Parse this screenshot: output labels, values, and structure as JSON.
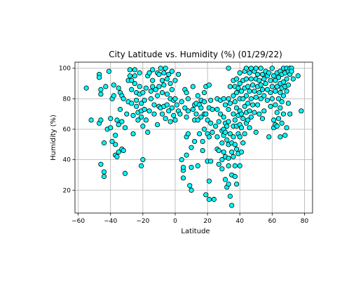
{
  "chart_data": {
    "type": "scatter",
    "title": "City Latitude vs. Humidity (%) (01/29/22)",
    "xlabel": "Latitude",
    "ylabel": "Humidity (%)",
    "xlim": [
      -62,
      85
    ],
    "ylim": [
      5,
      104
    ],
    "xticks": [
      -60,
      -40,
      -20,
      0,
      20,
      40,
      60,
      80
    ],
    "yticks": [
      20,
      40,
      60,
      80,
      100
    ],
    "grid": true,
    "marker_fill": "#00ffff",
    "marker_edge": "#000000",
    "points": [
      [
        -55,
        87
      ],
      [
        -52,
        66
      ],
      [
        -47,
        96
      ],
      [
        -47,
        94
      ],
      [
        -46,
        86
      ],
      [
        -46,
        83
      ],
      [
        -47,
        64
      ],
      [
        -46,
        66
      ],
      [
        -46,
        37
      ],
      [
        -44,
        32
      ],
      [
        -44,
        29
      ],
      [
        -44,
        51
      ],
      [
        -43,
        88
      ],
      [
        -42,
        60
      ],
      [
        -41,
        98
      ],
      [
        -40,
        61
      ],
      [
        -40,
        67
      ],
      [
        -39,
        52
      ],
      [
        -39,
        80
      ],
      [
        -38,
        89
      ],
      [
        -38,
        82
      ],
      [
        -37,
        56
      ],
      [
        -37,
        50
      ],
      [
        -37,
        43
      ],
      [
        -36,
        42
      ],
      [
        -36,
        66
      ],
      [
        -35,
        63
      ],
      [
        -35,
        45
      ],
      [
        -35,
        87
      ],
      [
        -34,
        84
      ],
      [
        -34,
        73
      ],
      [
        -33,
        47
      ],
      [
        -33,
        65
      ],
      [
        -33,
        82
      ],
      [
        -32,
        80
      ],
      [
        -32,
        46
      ],
      [
        -31,
        31
      ],
      [
        -31,
        61
      ],
      [
        -30,
        70
      ],
      [
        -29,
        92
      ],
      [
        -29,
        78
      ],
      [
        -28,
        99
      ],
      [
        -28,
        95
      ],
      [
        -27,
        92
      ],
      [
        -27,
        86
      ],
      [
        -27,
        77
      ],
      [
        -26,
        69
      ],
      [
        -26,
        57
      ],
      [
        -25,
        99
      ],
      [
        -25,
        95
      ],
      [
        -25,
        90
      ],
      [
        -24,
        84
      ],
      [
        -24,
        79
      ],
      [
        -24,
        75
      ],
      [
        -23,
        66
      ],
      [
        -23,
        71
      ],
      [
        -22,
        97
      ],
      [
        -22,
        88
      ],
      [
        -22,
        83
      ],
      [
        -21,
        77
      ],
      [
        -21,
        72
      ],
      [
        -21,
        68
      ],
      [
        -21,
        36
      ],
      [
        -20,
        40
      ],
      [
        -20,
        62
      ],
      [
        -20,
        84
      ],
      [
        -19,
        79
      ],
      [
        -19,
        73
      ],
      [
        -18,
        87
      ],
      [
        -18,
        66
      ],
      [
        -17,
        58
      ],
      [
        -17,
        95
      ],
      [
        -16,
        97
      ],
      [
        -16,
        72
      ],
      [
        -15,
        85
      ],
      [
        -15,
        80
      ],
      [
        -14,
        99
      ],
      [
        -14,
        92
      ],
      [
        -14,
        88
      ],
      [
        -13,
        76
      ],
      [
        -13,
        70
      ],
      [
        -12,
        86
      ],
      [
        -11,
        82
      ],
      [
        -11,
        97
      ],
      [
        -11,
        63
      ],
      [
        -10,
        96
      ],
      [
        -10,
        88
      ],
      [
        -10,
        75
      ],
      [
        -9,
        100
      ],
      [
        -9,
        74
      ],
      [
        -8,
        92
      ],
      [
        -8,
        84
      ],
      [
        -8,
        70
      ],
      [
        -7,
        97
      ],
      [
        -7,
        89
      ],
      [
        -7,
        75
      ],
      [
        -6,
        100
      ],
      [
        -6,
        67
      ],
      [
        -5,
        93
      ],
      [
        -5,
        83
      ],
      [
        -5,
        76
      ],
      [
        -4,
        96
      ],
      [
        -4,
        72
      ],
      [
        -3,
        90
      ],
      [
        -3,
        80
      ],
      [
        -3,
        65
      ],
      [
        -2,
        98
      ],
      [
        -2,
        86
      ],
      [
        -2,
        74
      ],
      [
        -1,
        79
      ],
      [
        -1,
        69
      ],
      [
        0,
        92
      ],
      [
        0,
        80
      ],
      [
        0,
        66
      ],
      [
        1,
        76
      ],
      [
        2,
        96
      ],
      [
        2,
        72
      ],
      [
        3,
        70
      ],
      [
        4,
        78
      ],
      [
        4,
        40
      ],
      [
        5,
        33
      ],
      [
        5,
        28
      ],
      [
        5,
        35
      ],
      [
        6,
        86
      ],
      [
        6,
        74
      ],
      [
        7,
        84
      ],
      [
        7,
        68
      ],
      [
        7,
        55
      ],
      [
        7,
        43
      ],
      [
        8,
        80
      ],
      [
        8,
        72
      ],
      [
        8,
        57
      ],
      [
        9,
        23
      ],
      [
        10,
        20
      ],
      [
        10,
        35
      ],
      [
        10,
        48
      ],
      [
        11,
        88
      ],
      [
        11,
        73
      ],
      [
        12,
        76
      ],
      [
        12,
        66
      ],
      [
        12,
        52
      ],
      [
        13,
        77
      ],
      [
        13,
        70
      ],
      [
        14,
        82
      ],
      [
        14,
        66
      ],
      [
        14,
        36
      ],
      [
        15,
        76
      ],
      [
        15,
        57
      ],
      [
        16,
        79
      ],
      [
        16,
        74
      ],
      [
        16,
        68
      ],
      [
        17,
        52
      ],
      [
        17,
        46
      ],
      [
        18,
        84
      ],
      [
        18,
        78
      ],
      [
        18,
        70
      ],
      [
        18,
        60
      ],
      [
        19,
        88
      ],
      [
        19,
        70
      ],
      [
        19,
        17
      ],
      [
        20,
        66
      ],
      [
        20,
        57
      ],
      [
        20,
        39
      ],
      [
        21,
        89
      ],
      [
        21,
        74
      ],
      [
        21,
        55
      ],
      [
        21,
        26
      ],
      [
        21,
        14
      ],
      [
        22,
        79
      ],
      [
        22,
        64
      ],
      [
        22,
        39
      ],
      [
        23,
        73
      ],
      [
        23,
        58
      ],
      [
        24,
        14
      ],
      [
        25,
        62
      ],
      [
        26,
        80
      ],
      [
        26,
        73
      ],
      [
        26,
        55
      ],
      [
        26,
        47
      ],
      [
        27,
        65
      ],
      [
        27,
        46
      ],
      [
        27,
        37
      ],
      [
        28,
        79
      ],
      [
        28,
        70
      ],
      [
        29,
        59
      ],
      [
        29,
        51
      ],
      [
        29,
        40
      ],
      [
        29,
        34
      ],
      [
        30,
        80
      ],
      [
        30,
        68
      ],
      [
        30,
        60
      ],
      [
        30,
        56
      ],
      [
        30,
        45
      ],
      [
        31,
        76
      ],
      [
        31,
        64
      ],
      [
        31,
        58
      ],
      [
        31,
        42
      ],
      [
        31,
        27
      ],
      [
        32,
        62
      ],
      [
        32,
        53
      ],
      [
        32,
        22
      ],
      [
        33,
        100
      ],
      [
        33,
        80
      ],
      [
        33,
        73
      ],
      [
        33,
        65
      ],
      [
        33,
        50
      ],
      [
        33,
        41
      ],
      [
        33,
        36
      ],
      [
        33,
        24
      ],
      [
        34,
        88
      ],
      [
        34,
        77
      ],
      [
        34,
        57
      ],
      [
        34,
        16
      ],
      [
        35,
        51
      ],
      [
        35,
        45
      ],
      [
        35,
        30
      ],
      [
        35,
        10
      ],
      [
        36,
        92
      ],
      [
        36,
        82
      ],
      [
        36,
        70
      ],
      [
        36,
        62
      ],
      [
        36,
        55
      ],
      [
        36,
        42
      ],
      [
        37,
        88
      ],
      [
        37,
        78
      ],
      [
        37,
        66
      ],
      [
        37,
        50
      ],
      [
        37,
        36
      ],
      [
        37,
        29
      ],
      [
        38,
        93
      ],
      [
        38,
        84
      ],
      [
        38,
        74
      ],
      [
        38,
        62
      ],
      [
        38,
        47
      ],
      [
        38,
        24
      ],
      [
        39,
        87
      ],
      [
        39,
        69
      ],
      [
        39,
        57
      ],
      [
        39,
        44
      ],
      [
        40,
        97
      ],
      [
        40,
        90
      ],
      [
        40,
        80
      ],
      [
        40,
        72
      ],
      [
        40,
        63
      ],
      [
        40,
        55
      ],
      [
        40,
        36
      ],
      [
        41,
        85
      ],
      [
        41,
        70
      ],
      [
        41,
        61
      ],
      [
        41,
        45
      ],
      [
        42,
        92
      ],
      [
        42,
        80
      ],
      [
        42,
        67
      ],
      [
        42,
        51
      ],
      [
        43,
        98
      ],
      [
        43,
        87
      ],
      [
        43,
        75
      ],
      [
        43,
        57
      ],
      [
        44,
        100
      ],
      [
        44,
        93
      ],
      [
        44,
        82
      ],
      [
        44,
        71
      ],
      [
        44,
        64
      ],
      [
        45,
        88
      ],
      [
        45,
        77
      ],
      [
        45,
        66
      ],
      [
        46,
        97
      ],
      [
        46,
        85
      ],
      [
        46,
        72
      ],
      [
        46,
        61
      ],
      [
        47,
        100
      ],
      [
        47,
        93
      ],
      [
        47,
        80
      ],
      [
        47,
        68
      ],
      [
        48,
        89
      ],
      [
        48,
        76
      ],
      [
        49,
        98
      ],
      [
        49,
        85
      ],
      [
        49,
        71
      ],
      [
        50,
        100
      ],
      [
        50,
        93
      ],
      [
        50,
        81
      ],
      [
        50,
        58
      ],
      [
        51,
        96
      ],
      [
        51,
        88
      ],
      [
        51,
        76
      ],
      [
        52,
        92
      ],
      [
        52,
        84
      ],
      [
        52,
        70
      ],
      [
        53,
        100
      ],
      [
        53,
        89
      ],
      [
        53,
        80
      ],
      [
        54,
        96
      ],
      [
        54,
        86
      ],
      [
        54,
        67
      ],
      [
        55,
        93
      ],
      [
        55,
        82
      ],
      [
        55,
        72
      ],
      [
        56,
        98
      ],
      [
        56,
        90
      ],
      [
        57,
        95
      ],
      [
        57,
        86
      ],
      [
        57,
        79
      ],
      [
        58,
        55
      ],
      [
        58,
        97
      ],
      [
        59,
        92
      ],
      [
        59,
        84
      ],
      [
        59,
        75
      ],
      [
        60,
        100
      ],
      [
        60,
        88
      ],
      [
        60,
        80
      ],
      [
        61,
        95
      ],
      [
        61,
        66
      ],
      [
        61,
        61
      ],
      [
        62,
        92
      ],
      [
        62,
        85
      ],
      [
        62,
        76
      ],
      [
        62,
        63
      ],
      [
        63,
        97
      ],
      [
        63,
        88
      ],
      [
        63,
        71
      ],
      [
        63,
        62
      ],
      [
        64,
        94
      ],
      [
        64,
        80
      ],
      [
        64,
        67
      ],
      [
        65,
        98
      ],
      [
        65,
        90
      ],
      [
        65,
        84
      ],
      [
        65,
        74
      ],
      [
        65,
        55
      ],
      [
        66,
        96
      ],
      [
        66,
        87
      ],
      [
        66,
        78
      ],
      [
        66,
        64
      ],
      [
        67,
        100
      ],
      [
        67,
        91
      ],
      [
        67,
        82
      ],
      [
        67,
        70
      ],
      [
        68,
        97
      ],
      [
        68,
        88
      ],
      [
        68,
        56
      ],
      [
        69,
        100
      ],
      [
        69,
        93
      ],
      [
        69,
        85
      ],
      [
        69,
        61
      ],
      [
        70,
        98
      ],
      [
        70,
        89
      ],
      [
        70,
        77
      ],
      [
        71,
        100
      ],
      [
        71,
        96
      ],
      [
        71,
        70
      ],
      [
        72,
        100
      ],
      [
        72,
        98
      ],
      [
        73,
        93
      ],
      [
        76,
        95
      ],
      [
        78,
        72
      ]
    ]
  }
}
